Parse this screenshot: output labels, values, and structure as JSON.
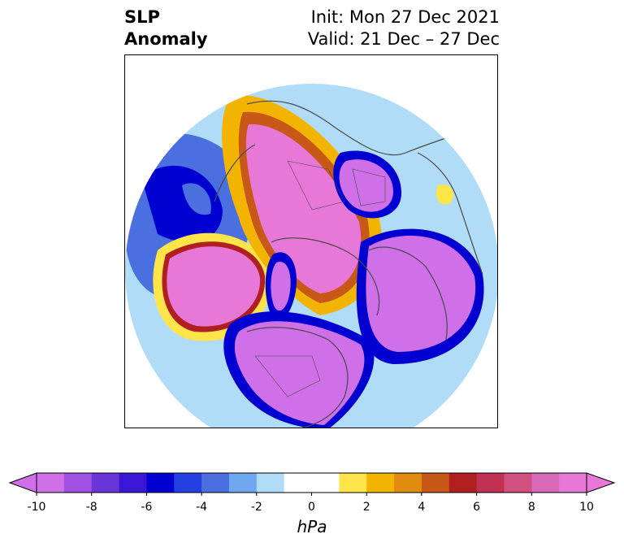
{
  "title": {
    "variable": "SLP",
    "subtitle": "Anomaly",
    "init": "Init: Mon 27 Dec 2021",
    "valid": "Valid: 21 Dec – 27 Dec"
  },
  "colorbar": {
    "unit": "hPa",
    "ticks": [
      "-10",
      "-8",
      "-6",
      "-4",
      "-2",
      "0",
      "2",
      "4",
      "6",
      "8",
      "10"
    ],
    "colors": [
      "#d070e8",
      "#a050e0",
      "#6a35d8",
      "#3a17d4",
      "#0000d0",
      "#2340e0",
      "#4a70e0",
      "#70a8f0",
      "#b0dcf8",
      "#ffffff",
      "#ffffff",
      "#ffe44a",
      "#f2b400",
      "#e08a10",
      "#c85818",
      "#b02020",
      "#c03050",
      "#d05080",
      "#d868b8",
      "#e878d8"
    ]
  },
  "colors": {
    "positive_max": "#e878d8",
    "negative_max": "#d070e8",
    "boundary": "#4a4a4a"
  }
}
